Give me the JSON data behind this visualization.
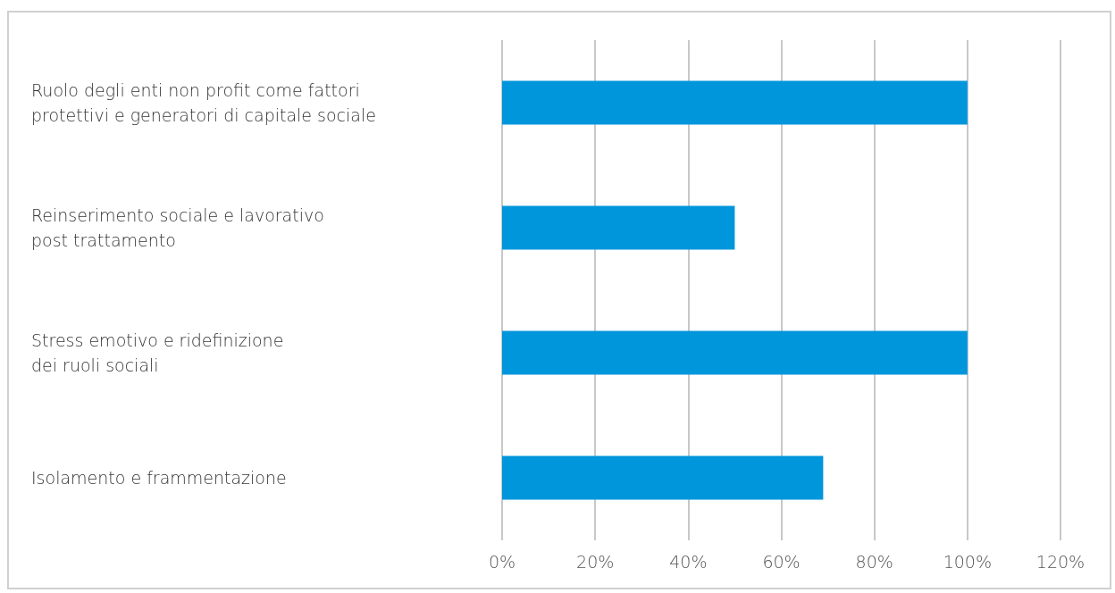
{
  "chart_data": {
    "type": "bar",
    "orientation": "horizontal",
    "categories": [
      "Ruolo degli enti non profit come fattori\nprotettivi e generatori di capitale sociale",
      "Reinserimento sociale e lavorativo\npost trattamento",
      "Stress emotivo e ridefinizione\ndei ruoli sociali",
      "Isolamento e frammentazione"
    ],
    "values": [
      100,
      50,
      100,
      69
    ],
    "color": "#0096db",
    "xlim": [
      0,
      120
    ],
    "xticks": [
      {
        "value": 0,
        "label": "0%"
      },
      {
        "value": 20,
        "label": "20%"
      },
      {
        "value": 40,
        "label": "40%"
      },
      {
        "value": 60,
        "label": "60%"
      },
      {
        "value": 80,
        "label": "80%"
      },
      {
        "value": 100,
        "label": "100%"
      },
      {
        "value": 120,
        "label": "120%"
      }
    ],
    "grid": "x"
  }
}
